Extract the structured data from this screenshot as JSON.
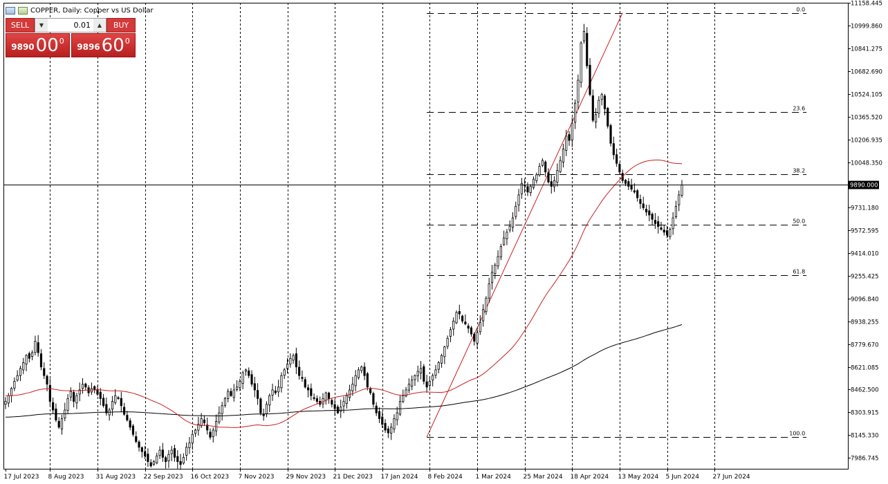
{
  "header": {
    "title": "COPPER, Daily:  Copper vs US Dollar"
  },
  "trade_panel": {
    "sell_label": "SELL",
    "buy_label": "BUY",
    "lot_value": "0.01",
    "bid_prefix": "9890",
    "bid_big": "00",
    "bid_sup": "0",
    "ask_prefix": "9896",
    "ask_big": "60",
    "ask_sup": "0",
    "color": "#d43a3a"
  },
  "chart_data": {
    "type": "candlestick",
    "symbol": "COPPER",
    "timeframe": "Daily",
    "current_price": 9890.0,
    "current_price_label": "9890.000",
    "ylim": [
      7910,
      11160
    ],
    "y_ticks": [
      "11158.445",
      "10999.860",
      "10841.275",
      "10682.690",
      "10524.105",
      "10365.520",
      "10206.935",
      "10048.350",
      "9731.180",
      "9572.595",
      "9414.010",
      "9255.425",
      "9096.840",
      "8938.255",
      "8779.670",
      "8621.085",
      "8462.500",
      "8303.915",
      "8145.330",
      "7986.745"
    ],
    "y_tick_values": [
      11158.445,
      10999.86,
      10841.275,
      10682.69,
      10524.105,
      10365.52,
      10206.935,
      10048.35,
      9731.18,
      9572.595,
      9414.01,
      9255.425,
      9096.84,
      8938.255,
      8779.67,
      8621.085,
      8462.5,
      8303.915,
      8145.33,
      7986.745
    ],
    "x_ticks": [
      {
        "label": "17 Jul 2023",
        "index": 0
      },
      {
        "label": "8 Aug 2023",
        "index": 15
      },
      {
        "label": "31 Aug 2023",
        "index": 31
      },
      {
        "label": "22 Sep 2023",
        "index": 47
      },
      {
        "label": "16 Oct 2023",
        "index": 63
      },
      {
        "label": "7 Nov 2023",
        "index": 79
      },
      {
        "label": "29 Nov 2023",
        "index": 95
      },
      {
        "label": "21 Dec 2023",
        "index": 111
      },
      {
        "label": "17 Jan 2024",
        "index": 127
      },
      {
        "label": "8 Feb 2024",
        "index": 143
      },
      {
        "label": "1 Mar 2024",
        "index": 159
      },
      {
        "label": "25 Mar 2024",
        "index": 175
      },
      {
        "label": "18 Apr 2024",
        "index": 191
      },
      {
        "label": "13 May 2024",
        "index": 207
      },
      {
        "label": "5 Jun 2024",
        "index": 223
      },
      {
        "label": "27 Jun 2024",
        "index": 239
      }
    ],
    "x_range": [
      0,
      270
    ],
    "fibonacci": {
      "levels": [
        {
          "label": "0.0",
          "price": 11090
        },
        {
          "label": "23.6",
          "price": 10400
        },
        {
          "label": "38.2",
          "price": 9963
        },
        {
          "label": "50.0",
          "price": 9610
        },
        {
          "label": "61.8",
          "price": 9260
        },
        {
          "label": "100.0",
          "price": 8131
        }
      ],
      "start_index": 142,
      "end_index": 270,
      "trend_line": {
        "from_index": 142,
        "from_price": 8131,
        "to_index": 208,
        "to_price": 11090
      }
    },
    "closes": [
      8380,
      8420,
      8470,
      8520,
      8560,
      8610,
      8650,
      8700,
      8680,
      8720,
      8800,
      8720,
      8620,
      8560,
      8500,
      8380,
      8320,
      8250,
      8200,
      8260,
      8320,
      8400,
      8450,
      8380,
      8420,
      8460,
      8500,
      8480,
      8440,
      8470,
      8460,
      8430,
      8400,
      8350,
      8300,
      8320,
      8380,
      8420,
      8400,
      8350,
      8290,
      8250,
      8200,
      8150,
      8100,
      8060,
      8030,
      8000,
      7960,
      7930,
      7960,
      8000,
      8040,
      7990,
      7960,
      8010,
      8040,
      7990,
      7960,
      7940,
      7990,
      8060,
      8090,
      8150,
      8180,
      8220,
      8260,
      8230,
      8180,
      8130,
      8180,
      8240,
      8300,
      8350,
      8400,
      8450,
      8420,
      8460,
      8480,
      8520,
      8580,
      8600,
      8560,
      8500,
      8460,
      8400,
      8300,
      8280,
      8360,
      8420,
      8460,
      8440,
      8480,
      8560,
      8600,
      8640,
      8680,
      8700,
      8620,
      8560,
      8540,
      8480,
      8460,
      8420,
      8400,
      8380,
      8360,
      8400,
      8440,
      8400,
      8360,
      8330,
      8300,
      8340,
      8380,
      8420,
      8460,
      8500,
      8560,
      8600,
      8620,
      8560,
      8480,
      8440,
      8360,
      8300,
      8260,
      8220,
      8180,
      8160,
      8200,
      8260,
      8300,
      8380,
      8420,
      8460,
      8500,
      8530,
      8560,
      8590,
      8610,
      8520,
      8480,
      8520,
      8560,
      8600,
      8650,
      8700,
      8760,
      8820,
      8880,
      8940,
      9000,
      8990,
      8940,
      8920,
      8890,
      8850,
      8800,
      8860,
      8930,
      9020,
      9100,
      9200,
      9280,
      9330,
      9390,
      9460,
      9520,
      9560,
      9600,
      9660,
      9740,
      9820,
      9900,
      9890,
      9840,
      9880,
      9930,
      9960,
      10020,
      10060,
      9980,
      9910,
      9880,
      9920,
      9990,
      10060,
      10140,
      10230,
      10200,
      10320,
      10460,
      10620,
      10880,
      10960,
      10720,
      10520,
      10340,
      10380,
      10480,
      10520,
      10420,
      10300,
      10180,
      10100,
      10040,
      9980,
      9920,
      9900,
      9880,
      9860,
      9840,
      9800,
      9760,
      9730,
      9700,
      9680,
      9650,
      9620,
      9600,
      9580,
      9560,
      9540,
      9580,
      9660,
      9740,
      9820,
      9890
    ],
    "ma_red": {
      "period": 50,
      "color": "#c81e1e"
    },
    "ma_black": {
      "period": 200,
      "color": "#000000"
    }
  }
}
